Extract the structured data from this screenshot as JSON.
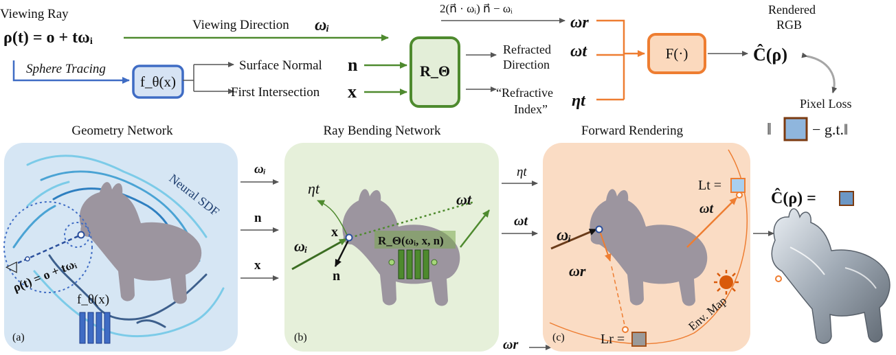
{
  "top": {
    "viewing_ray": "Viewing Ray",
    "ray_eq": "ρ(t) = o + tωᵢ",
    "viewing_direction": "Viewing Direction",
    "viewing_direction_sym": "ωᵢ",
    "sphere_tracing": "Sphere Tracing",
    "f_theta": "f_θ(x)",
    "surface_normal": "Surface Normal",
    "surface_normal_sym": "n",
    "first_intersection": "First Intersection",
    "first_intersection_sym": "x",
    "r_theta": "R_Θ",
    "reflect_eq": "2(n⃗ · ωᵢ) n⃗ − ωᵢ",
    "omega_r": "ωr",
    "refracted_line1": "Refracted",
    "refracted_line2": "Direction",
    "omega_t": "ωt",
    "refractive_line1": "“Refractive",
    "refractive_line2": "Index”",
    "eta_t": "ηt",
    "f_box": "F(·)",
    "rendered_line1": "Rendered",
    "rendered_line2": "RGB",
    "c_rho": "Ĉ(ρ)",
    "pixel_loss": "Pixel Loss",
    "loss_left": "‖",
    "loss_right": "− g.t.‖"
  },
  "panels": {
    "geometry_title": "Geometry Network",
    "ray_bending_title": "Ray Bending Network",
    "forward_title": "Forward Rendering",
    "panel_a_tag": "(a)",
    "panel_b_tag": "(b)",
    "panel_c_tag": "(c)",
    "neural_sdf": "Neural SDF",
    "ray_eq_rotated": "ρ(t) = o + tωᵢ",
    "f_theta_small": "f_θ(x)",
    "x_label": "x",
    "n_label": "n",
    "omega_i": "ωᵢ",
    "eta_t": "ηt",
    "omega_t": "ωt",
    "r_theta_args": "R_Θ(ωᵢ, x, n)",
    "between_ab": [
      "ωᵢ",
      "n",
      "x"
    ],
    "between_bc": [
      "ηt",
      "ωt"
    ],
    "omega_r_bottom": "ωr",
    "l_t": "Lt =",
    "l_r": "Lr =",
    "omega_r_c": "ωr",
    "omega_t_c": "ωt",
    "omega_i_c": "ωᵢ",
    "env_map": "Env. Map",
    "c_rho_eq": "Ĉ(ρ) ="
  },
  "colors": {
    "green": "#4e8a2e",
    "blue": "#3f6cc4",
    "orange": "#ee7d31",
    "panel_a": "#d6e6f4",
    "panel_b": "#e6f0da",
    "panel_c": "#fadcc4"
  }
}
